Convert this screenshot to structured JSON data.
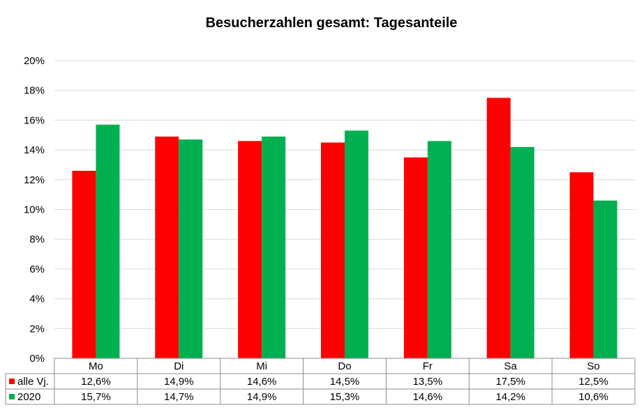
{
  "chart_data": {
    "type": "bar",
    "title": "Besucherzahlen gesamt: Tagesanteile",
    "xlabel": "",
    "ylabel": "",
    "categories": [
      "Mo",
      "Di",
      "Mi",
      "Do",
      "Fr",
      "Sa",
      "So"
    ],
    "series": [
      {
        "name": "alle Vj.",
        "color": "#ff0000",
        "values": [
          12.6,
          14.9,
          14.6,
          14.5,
          13.5,
          17.5,
          12.5
        ],
        "labels": [
          "12,6%",
          "14,9%",
          "14,6%",
          "14,5%",
          "13,5%",
          "17,5%",
          "12,5%"
        ]
      },
      {
        "name": "2020",
        "color": "#00b050",
        "values": [
          15.7,
          14.7,
          14.9,
          15.3,
          14.6,
          14.2,
          10.6
        ],
        "labels": [
          "15,7%",
          "14,7%",
          "14,9%",
          "15,3%",
          "14,6%",
          "14,2%",
          "10,6%"
        ]
      }
    ],
    "ylim": [
      0,
      20
    ],
    "yticks": [
      "0%",
      "2%",
      "4%",
      "6%",
      "8%",
      "10%",
      "12%",
      "14%",
      "16%",
      "18%",
      "20%"
    ],
    "grid": true,
    "legend": "data-table-left"
  }
}
